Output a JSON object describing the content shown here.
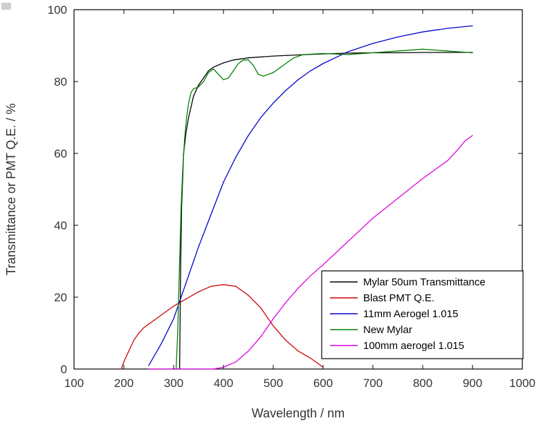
{
  "chart_data": {
    "type": "line",
    "xlabel": "Wavelength / nm",
    "ylabel": "Transmittance or PMT Q.E. / %",
    "xlim": [
      100,
      1000
    ],
    "ylim": [
      0,
      100
    ],
    "xticks": [
      100,
      200,
      300,
      400,
      500,
      600,
      700,
      800,
      900,
      1000
    ],
    "yticks": [
      0,
      20,
      40,
      60,
      80,
      100
    ],
    "legend_position": "bottom-right",
    "grid": false,
    "series": [
      {
        "name": "Mylar 50um Transmittance",
        "color": "#000000",
        "points": [
          [
            307,
            0
          ],
          [
            312,
            0
          ],
          [
            314,
            28
          ],
          [
            316,
            45
          ],
          [
            320,
            60
          ],
          [
            325,
            66
          ],
          [
            330,
            70
          ],
          [
            340,
            76
          ],
          [
            350,
            79
          ],
          [
            360,
            81
          ],
          [
            370,
            83
          ],
          [
            380,
            84
          ],
          [
            400,
            85.2
          ],
          [
            420,
            86
          ],
          [
            450,
            86.6
          ],
          [
            500,
            87.1
          ],
          [
            550,
            87.4
          ],
          [
            600,
            87.7
          ],
          [
            650,
            87.9
          ],
          [
            700,
            88
          ],
          [
            750,
            88
          ],
          [
            800,
            88.1
          ],
          [
            850,
            88.1
          ],
          [
            900,
            88.1
          ]
        ]
      },
      {
        "name": "Blast PMT Q.E.",
        "color": "#cc0000",
        "points": [
          [
            195,
            0
          ],
          [
            200,
            2
          ],
          [
            210,
            5
          ],
          [
            220,
            8
          ],
          [
            230,
            10
          ],
          [
            240,
            11.5
          ],
          [
            250,
            12.5
          ],
          [
            275,
            15
          ],
          [
            300,
            17.5
          ],
          [
            325,
            19.5
          ],
          [
            350,
            21.5
          ],
          [
            375,
            23
          ],
          [
            400,
            23.5
          ],
          [
            425,
            23
          ],
          [
            450,
            20.5
          ],
          [
            475,
            17
          ],
          [
            500,
            12
          ],
          [
            525,
            8
          ],
          [
            550,
            5
          ],
          [
            575,
            3
          ],
          [
            600,
            0.5
          ]
        ]
      },
      {
        "name": "11mm Aerogel 1.015",
        "color": "#0000cc",
        "points": [
          [
            250,
            1
          ],
          [
            275,
            7
          ],
          [
            300,
            14
          ],
          [
            325,
            24
          ],
          [
            350,
            34
          ],
          [
            375,
            43
          ],
          [
            400,
            52
          ],
          [
            425,
            59
          ],
          [
            450,
            65
          ],
          [
            475,
            70
          ],
          [
            500,
            74
          ],
          [
            525,
            77.5
          ],
          [
            550,
            80.5
          ],
          [
            575,
            83
          ],
          [
            600,
            85
          ],
          [
            650,
            88.3
          ],
          [
            700,
            90.6
          ],
          [
            750,
            92.4
          ],
          [
            800,
            93.8
          ],
          [
            850,
            94.8
          ],
          [
            900,
            95.5
          ]
        ]
      },
      {
        "name": "New Mylar",
        "color": "#008000",
        "points": [
          [
            300,
            0
          ],
          [
            305,
            0
          ],
          [
            308,
            10
          ],
          [
            310,
            20
          ],
          [
            312,
            30
          ],
          [
            315,
            45
          ],
          [
            318,
            55
          ],
          [
            322,
            64
          ],
          [
            326,
            70
          ],
          [
            330,
            74
          ],
          [
            335,
            77
          ],
          [
            340,
            78
          ],
          [
            350,
            78.5
          ],
          [
            360,
            80
          ],
          [
            370,
            82.5
          ],
          [
            380,
            83.5
          ],
          [
            390,
            82
          ],
          [
            400,
            80.5
          ],
          [
            410,
            81
          ],
          [
            420,
            83
          ],
          [
            430,
            85
          ],
          [
            440,
            86
          ],
          [
            450,
            86
          ],
          [
            460,
            84.5
          ],
          [
            470,
            82
          ],
          [
            480,
            81.5
          ],
          [
            500,
            82.5
          ],
          [
            520,
            84.5
          ],
          [
            540,
            86.5
          ],
          [
            560,
            87.5
          ],
          [
            600,
            87.8
          ],
          [
            650,
            87.5
          ],
          [
            700,
            88
          ],
          [
            750,
            88.5
          ],
          [
            800,
            89
          ],
          [
            850,
            88.5
          ],
          [
            900,
            88
          ]
        ]
      },
      {
        "name": "100mm aerogel 1.015",
        "color": "#e000e0",
        "points": [
          [
            250,
            0
          ],
          [
            300,
            0
          ],
          [
            350,
            0
          ],
          [
            380,
            0
          ],
          [
            400,
            0.5
          ],
          [
            425,
            2
          ],
          [
            450,
            5
          ],
          [
            475,
            9
          ],
          [
            500,
            14
          ],
          [
            525,
            18.5
          ],
          [
            550,
            22.5
          ],
          [
            575,
            26
          ],
          [
            600,
            29
          ],
          [
            650,
            35.5
          ],
          [
            700,
            42
          ],
          [
            750,
            47.5
          ],
          [
            800,
            53
          ],
          [
            825,
            55.5
          ],
          [
            850,
            58
          ],
          [
            870,
            61
          ],
          [
            885,
            63.5
          ],
          [
            900,
            65
          ]
        ]
      }
    ]
  }
}
